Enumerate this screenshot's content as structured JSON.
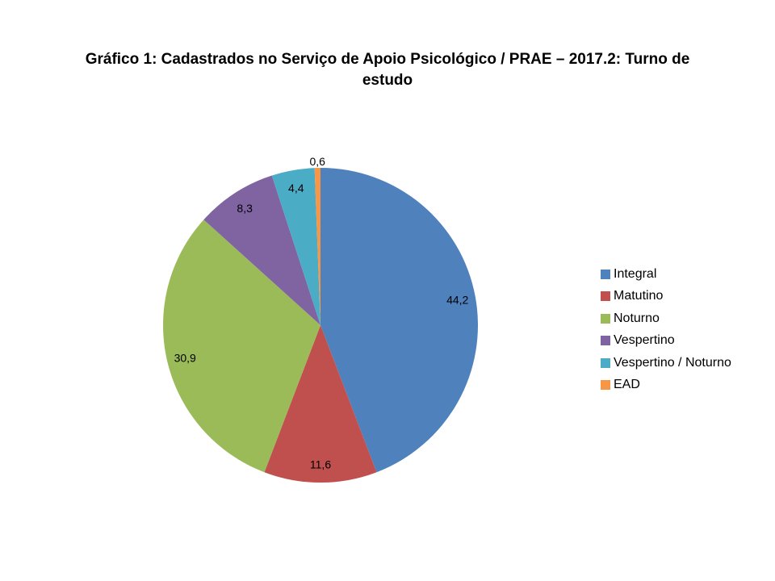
{
  "title": {
    "line1": "Gráfico 1: Cadastrados no Serviço de Apoio Psicológico / PRAE – 2017.2: Turno de",
    "line2": "estudo"
  },
  "chart_data": {
    "type": "pie",
    "title": "Gráfico 1: Cadastrados no Serviço de Apoio Psicológico / PRAE – 2017.2: Turno de estudo",
    "categories": [
      "Integral",
      "Matutino",
      "Noturno",
      "Vespertino",
      "Vespertino / Noturno",
      "EAD"
    ],
    "values": [
      44.2,
      11.6,
      30.9,
      8.3,
      4.4,
      0.6
    ],
    "point_labels": [
      "44,2",
      "11,6",
      "30,9",
      "8,3",
      "4,4",
      "0,6"
    ],
    "colors": [
      "#4F81BD",
      "#C0504D",
      "#9BBB59",
      "#8064A2",
      "#4BACC6",
      "#F79646"
    ],
    "start_angle_deg": 0,
    "direction": "clockwise",
    "legend_position": "right",
    "background": "#FFFFFF",
    "label_decimal_separator": ","
  }
}
